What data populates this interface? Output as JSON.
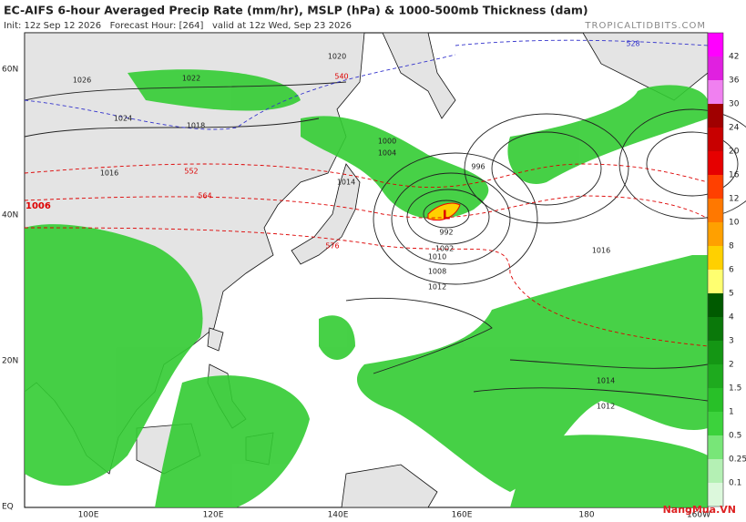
{
  "header": {
    "title": "EC-AIFS 6-hour Averaged Precip Rate (mm/hr), MSLP (hPa) & 1000-500mb Thickness (dam)",
    "subtitle": "Init: 12z Sep 12 2026   Forecast Hour: [264]   valid at 12z Wed, Sep 23 2026",
    "site": "TROPICALTIDBITS.COM"
  },
  "map": {
    "lat_labels": [
      "60N",
      "40N",
      "20N",
      "EQ"
    ],
    "lon_labels": [
      "100E",
      "120E",
      "140E",
      "160E",
      "180",
      "160W"
    ],
    "isobar_labels": [
      "1020",
      "1018",
      "1016",
      "1014",
      "1012",
      "1024",
      "1026",
      "1022",
      "1004",
      "1000",
      "996",
      "1008",
      "1010",
      "1002",
      "992",
      "1016",
      "1014",
      "1012"
    ],
    "thickness_labels": [
      "540",
      "552",
      "564",
      "576",
      "528"
    ],
    "low_pressure_label": "1006",
    "low_marker": "L"
  },
  "colorbar": {
    "labels": [
      42,
      36,
      30,
      24,
      20,
      16,
      12,
      10,
      8,
      6,
      5,
      4,
      3,
      2,
      1.5,
      1,
      0.5,
      0.25,
      0.1
    ],
    "colors": [
      "#ff00ff",
      "#e020e0",
      "#f080f0",
      "#a00000",
      "#c80000",
      "#e60000",
      "#ff4000",
      "#ff7800",
      "#ffa000",
      "#ffd000",
      "#ffff70",
      "#005a00",
      "#0a780a",
      "#149614",
      "#1eaa1e",
      "#28c028",
      "#3cd23c",
      "#78e678",
      "#b4f0b4",
      "#dcf8dc"
    ]
  },
  "watermark": "NangMua.VN"
}
